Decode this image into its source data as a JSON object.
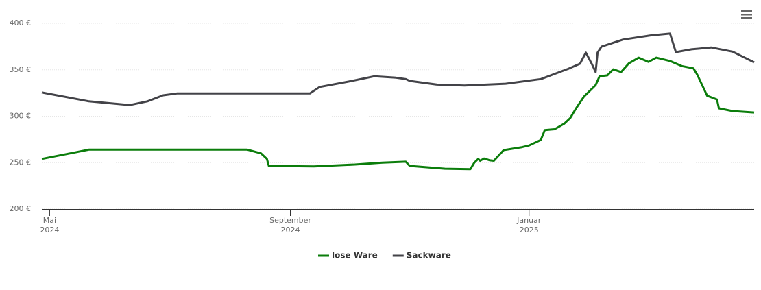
{
  "chart_data": {
    "type": "line",
    "xlim": [
      "2024-04-27",
      "2025-04-26"
    ],
    "xticks": [
      {
        "value": "2024-05-01",
        "label": [
          "Mai",
          "2024"
        ]
      },
      {
        "value": "2024-09-01",
        "label": [
          "September",
          "2024"
        ]
      },
      {
        "value": "2025-01-01",
        "label": [
          "Januar",
          "2025"
        ]
      }
    ],
    "ylim": [
      200,
      400
    ],
    "yticks": [
      {
        "value": 200,
        "label": "200 €"
      },
      {
        "value": 250,
        "label": "250 €"
      },
      {
        "value": 300,
        "label": "300 €"
      },
      {
        "value": 350,
        "label": "350 €"
      },
      {
        "value": 400,
        "label": "400 €"
      }
    ],
    "grid": true,
    "legend": "bottom",
    "series": [
      {
        "name": "lose Ware",
        "color": "#0b7d0b",
        "x": [
          "2024-04-27",
          "2024-05-21",
          "2024-08-10",
          "2024-08-17",
          "2024-08-20",
          "2024-08-21",
          "2024-09-13",
          "2024-10-04",
          "2024-10-18",
          "2024-10-30",
          "2024-11-01",
          "2024-11-19",
          "2024-12-02",
          "2024-12-04",
          "2024-12-06",
          "2024-12-07",
          "2024-12-09",
          "2024-12-12",
          "2024-12-14",
          "2024-12-19",
          "2024-12-28",
          "2025-01-01",
          "2025-01-07",
          "2025-01-09",
          "2025-01-14",
          "2025-01-19",
          "2025-01-22",
          "2025-01-25",
          "2025-01-29",
          "2025-02-04",
          "2025-02-06",
          "2025-02-10",
          "2025-02-13",
          "2025-02-17",
          "2025-02-21",
          "2025-02-26",
          "2025-03-03",
          "2025-03-07",
          "2025-03-14",
          "2025-03-20",
          "2025-03-26",
          "2025-03-28",
          "2025-04-02",
          "2025-04-07",
          "2025-04-08",
          "2025-04-15",
          "2025-04-26"
        ],
        "values": [
          254,
          264,
          264,
          260,
          254,
          246.5,
          246,
          248,
          250,
          251,
          246.5,
          243.5,
          243,
          250,
          254,
          252,
          254.5,
          252.5,
          252,
          263.5,
          266.5,
          268.5,
          274.5,
          285,
          286,
          292,
          298,
          308.5,
          321,
          333.5,
          343,
          344,
          350.5,
          347.5,
          357,
          363,
          358.5,
          363,
          359.5,
          354,
          351.5,
          344.5,
          322,
          318,
          308.5,
          305.5,
          304
        ]
      },
      {
        "name": "Sackware",
        "color": "#434348",
        "x": [
          "2024-04-27",
          "2024-05-21",
          "2024-06-11",
          "2024-06-20",
          "2024-06-28",
          "2024-07-05",
          "2024-09-11",
          "2024-09-16",
          "2024-09-30",
          "2024-10-14",
          "2024-10-25",
          "2024-10-30",
          "2024-11-01",
          "2024-11-15",
          "2024-11-29",
          "2024-12-20",
          "2025-01-07",
          "2025-01-21",
          "2025-01-27",
          "2025-01-30",
          "2025-02-02",
          "2025-02-04",
          "2025-02-05",
          "2025-02-07",
          "2025-02-18",
          "2025-03-04",
          "2025-03-14",
          "2025-03-17",
          "2025-03-25",
          "2025-04-04",
          "2025-04-15",
          "2025-04-26"
        ],
        "values": [
          325.5,
          316,
          312,
          316,
          322.5,
          324.5,
          324.5,
          331.5,
          337,
          343,
          341.5,
          340,
          338,
          334,
          333,
          335,
          340,
          351,
          356.5,
          368.5,
          356.5,
          347.5,
          368.5,
          375,
          382.5,
          387,
          389,
          369,
          372,
          374,
          369.5,
          358
        ]
      }
    ]
  }
}
